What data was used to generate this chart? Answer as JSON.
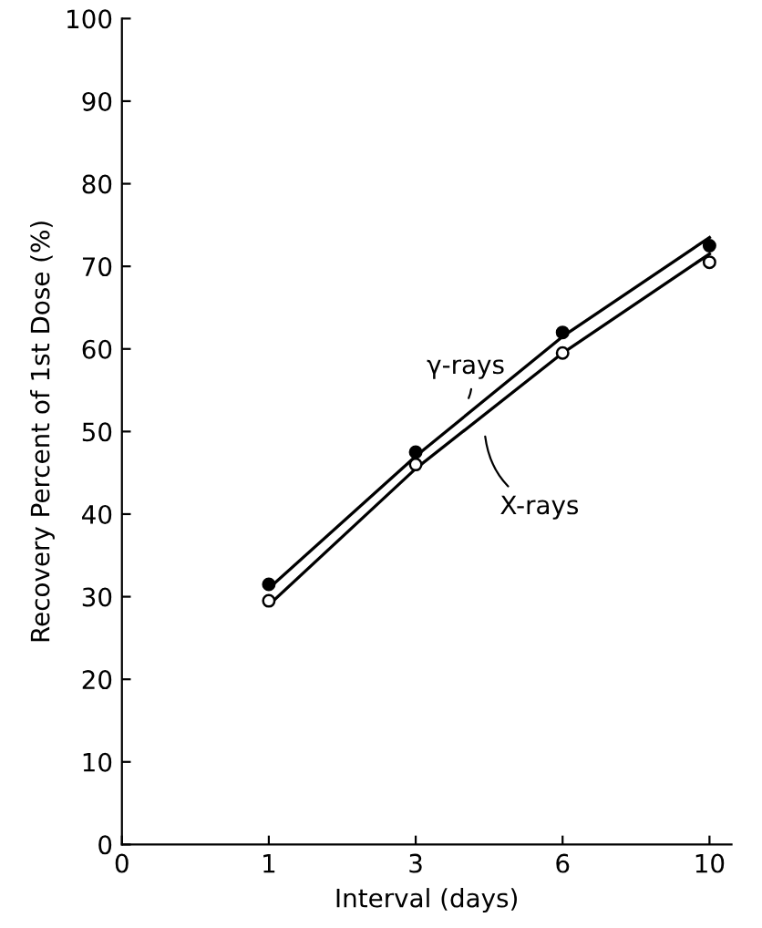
{
  "chart_data": {
    "type": "scatter",
    "xlabel": "Interval (days)",
    "ylabel": "Recovery Percent of 1st Dose (%)",
    "categories": [
      "0",
      "1",
      "3",
      "6",
      "10"
    ],
    "ylim": [
      0,
      100
    ],
    "yticks": [
      0,
      10,
      20,
      30,
      40,
      50,
      60,
      70,
      80,
      90,
      100
    ],
    "grid": false,
    "legend": false,
    "series": [
      {
        "type": "line",
        "values": [
          null,
          31,
          47,
          61.5,
          73.5
        ],
        "color": "#000000",
        "marker": "none"
      },
      {
        "type": "line",
        "values": [
          null,
          29,
          45.5,
          59.5,
          71.5
        ],
        "color": "#000000",
        "marker": "none"
      },
      {
        "values": [
          null,
          31.5,
          47.5,
          62,
          72.5
        ],
        "color": "#000000",
        "marker": "circle"
      },
      {
        "values": [
          null,
          29.5,
          46,
          59.5,
          70.5
        ],
        "color": "#ffffff",
        "marker": "circle"
      }
    ],
    "annotations": [
      "γ-rays",
      "X-rays"
    ]
  }
}
